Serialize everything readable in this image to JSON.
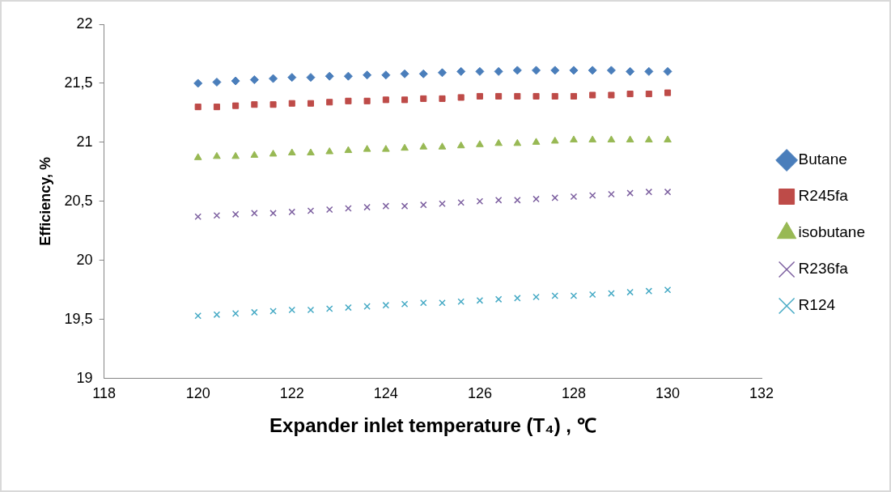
{
  "chart_data": {
    "type": "scatter",
    "xlabel": "Expander inlet temperature (T₄) , ℃",
    "ylabel": "Efficiency, %",
    "x": [
      120,
      120.4,
      120.8,
      121.2,
      121.6,
      122,
      122.4,
      122.8,
      123.2,
      123.6,
      124,
      124.4,
      124.8,
      125.2,
      125.6,
      126,
      126.4,
      126.8,
      127.2,
      127.6,
      128,
      128.4,
      128.8,
      129.2,
      129.6,
      130
    ],
    "series": [
      {
        "name": "Butane",
        "color": "#4a7ebb",
        "marker": "diamond",
        "values": [
          21.5,
          21.51,
          21.52,
          21.53,
          21.54,
          21.55,
          21.55,
          21.56,
          21.56,
          21.57,
          21.57,
          21.58,
          21.58,
          21.59,
          21.6,
          21.6,
          21.6,
          21.61,
          21.61,
          21.61,
          21.61,
          21.61,
          21.61,
          21.6,
          21.6,
          21.6
        ]
      },
      {
        "name": "R245fa",
        "color": "#be4b48",
        "marker": "square",
        "values": [
          21.3,
          21.3,
          21.31,
          21.32,
          21.32,
          21.33,
          21.33,
          21.34,
          21.35,
          21.35,
          21.36,
          21.36,
          21.37,
          21.37,
          21.38,
          21.39,
          21.39,
          21.39,
          21.39,
          21.39,
          21.39,
          21.4,
          21.4,
          21.41,
          21.41,
          21.42
        ]
      },
      {
        "name": "isobutane",
        "color": "#98b954",
        "marker": "triangle",
        "values": [
          20.87,
          20.88,
          20.88,
          20.89,
          20.9,
          20.91,
          20.91,
          20.92,
          20.93,
          20.94,
          20.94,
          20.95,
          20.96,
          20.96,
          20.97,
          20.98,
          20.99,
          20.99,
          21.0,
          21.01,
          21.02,
          21.02,
          21.02,
          21.02,
          21.02,
          21.02
        ]
      },
      {
        "name": "R236fa",
        "color": "#7d60a0",
        "marker": "cross",
        "values": [
          20.37,
          20.38,
          20.39,
          20.4,
          20.4,
          20.41,
          20.42,
          20.43,
          20.44,
          20.45,
          20.46,
          20.46,
          20.47,
          20.48,
          20.49,
          20.5,
          20.51,
          20.51,
          20.52,
          20.53,
          20.54,
          20.55,
          20.56,
          20.57,
          20.58,
          20.58
        ]
      },
      {
        "name": "R124",
        "color": "#46aac5",
        "marker": "cross",
        "values": [
          19.53,
          19.54,
          19.55,
          19.56,
          19.57,
          19.58,
          19.58,
          19.59,
          19.6,
          19.61,
          19.62,
          19.63,
          19.64,
          19.64,
          19.65,
          19.66,
          19.67,
          19.68,
          19.69,
          19.7,
          19.7,
          19.71,
          19.72,
          19.73,
          19.74,
          19.75
        ]
      }
    ],
    "xlim": [
      118,
      132
    ],
    "xticks": [
      118,
      120,
      122,
      124,
      126,
      128,
      130,
      132
    ],
    "ylim": [
      19,
      22
    ],
    "yticks": [
      19,
      {
        "value": 19.5,
        "label": "19,5"
      },
      20,
      {
        "value": 20.5,
        "label": "20,5"
      },
      21,
      {
        "value": 21.5,
        "label": "21,5"
      },
      22
    ],
    "grid": false,
    "legend": "right"
  }
}
